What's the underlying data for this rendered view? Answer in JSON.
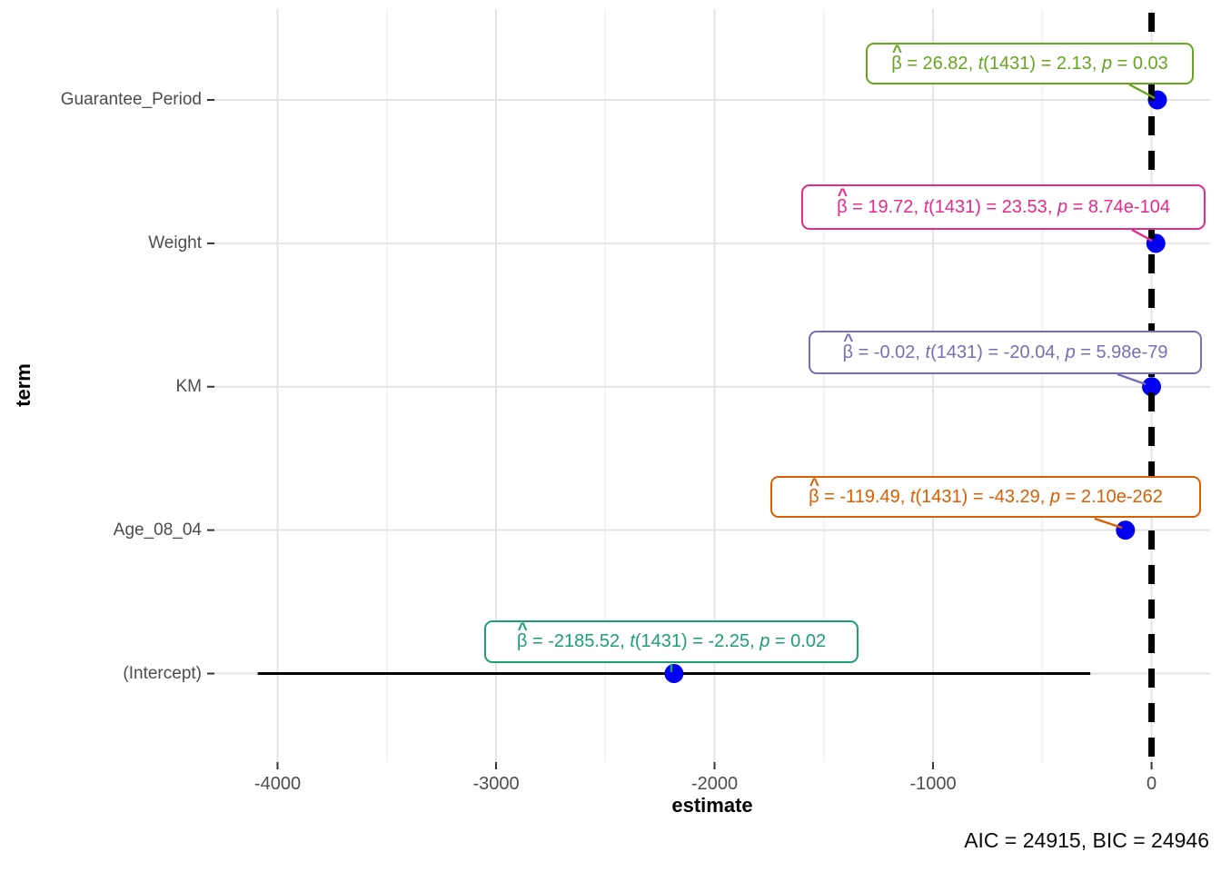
{
  "chart_data": {
    "type": "scatter",
    "title": "",
    "xlabel": "estimate",
    "ylabel": "term",
    "caption": "AIC = 24915, BIC = 24946",
    "xlim": [
      -4289,
      268
    ],
    "x_ticks": [
      -4000,
      -3000,
      -2000,
      -1000,
      0
    ],
    "x_tick_labels": [
      "-4000",
      "-3000",
      "-2000",
      "-1000",
      "0"
    ],
    "categories_top_to_bottom": [
      "Guarantee_Period",
      "Weight",
      "KM",
      "Age_08_04",
      "(Intercept)"
    ],
    "zero_line_x": 0,
    "grid": "major+minor vertical, major horizontal",
    "legend": "none",
    "point_color": "#0000ee",
    "rows": [
      {
        "term": "Guarantee_Period",
        "estimate": 26.82,
        "ci_low": 2.1,
        "ci_high": 51.5,
        "beta": "26.82",
        "df": "1431",
        "t": "2.13",
        "p": "0.03",
        "color": "#66A61E"
      },
      {
        "term": "Weight",
        "estimate": 19.72,
        "ci_low": 18.08,
        "ci_high": 21.36,
        "beta": "19.72",
        "df": "1431",
        "t": "23.53",
        "p": "8.74e-104",
        "color": "#E7298A"
      },
      {
        "term": "KM",
        "estimate": -0.02,
        "ci_low": -0.022,
        "ci_high": -0.018,
        "beta": "-0.02",
        "df": "1431",
        "t": "-20.04",
        "p": "5.98e-79",
        "color": "#7570B3"
      },
      {
        "term": "Age_08_04",
        "estimate": -119.49,
        "ci_low": -124.9,
        "ci_high": -114.1,
        "beta": "-119.49",
        "df": "1431",
        "t": "-43.29",
        "p": "2.10e-262",
        "color": "#D95F02"
      },
      {
        "term": "(Intercept)",
        "estimate": -2185.52,
        "ci_low": -4090.7,
        "ci_high": -280.3,
        "beta": "-2185.52",
        "df": "1431",
        "t": "-2.25",
        "p": "0.02",
        "color": "#1B9E77"
      }
    ]
  },
  "fmt": {
    "beta": "β",
    "hat": "^",
    "eq": " = ",
    "comma": ", ",
    "t": "t",
    "open": "(",
    "close_eq": ") = ",
    "p": "p"
  },
  "colors": {
    "grid_major": "#e4e4e4",
    "grid_minor": "#efefef",
    "tick": "#333333",
    "axis_text": "#4d4d4d",
    "zero_line": "#000000",
    "error_bar": "#000000"
  }
}
